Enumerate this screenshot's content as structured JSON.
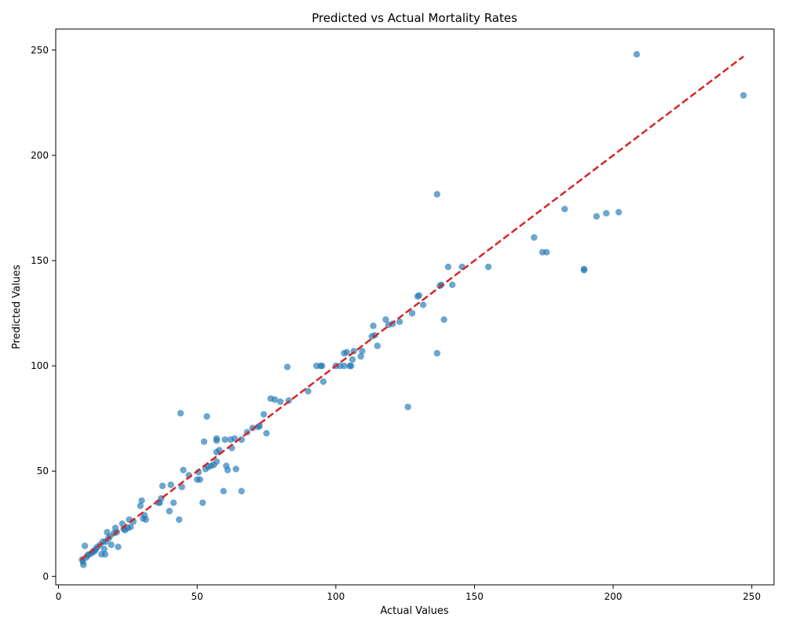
{
  "chart_data": {
    "type": "scatter",
    "title": "Predicted vs Actual Mortality Rates",
    "xlabel": "Actual Values",
    "ylabel": "Predicted Values",
    "xlim": [
      -1,
      258
    ],
    "ylim": [
      -4,
      260
    ],
    "xticks": [
      0,
      50,
      100,
      150,
      200,
      250
    ],
    "yticks": [
      0,
      50,
      100,
      150,
      200,
      250
    ],
    "grid": false,
    "point_color": "#1f77b4",
    "line_color": "#d62728",
    "reference_line": {
      "style": "dashed",
      "x": [
        8,
        247
      ],
      "y": [
        8,
        247
      ]
    },
    "points": [
      [
        8.5,
        8
      ],
      [
        8.8,
        7
      ],
      [
        9,
        5.5
      ],
      [
        9.5,
        14.5
      ],
      [
        10,
        9
      ],
      [
        10.5,
        10
      ],
      [
        11,
        10.5
      ],
      [
        12,
        11
      ],
      [
        12.5,
        12
      ],
      [
        13,
        12
      ],
      [
        13.5,
        13
      ],
      [
        14,
        14
      ],
      [
        15,
        15
      ],
      [
        15.5,
        10.5
      ],
      [
        16,
        16.5
      ],
      [
        16.5,
        13
      ],
      [
        16.8,
        10.5
      ],
      [
        17,
        16.5
      ],
      [
        17.5,
        21
      ],
      [
        18,
        18
      ],
      [
        18.5,
        19
      ],
      [
        19,
        15
      ],
      [
        20,
        20.5
      ],
      [
        20.5,
        23
      ],
      [
        21,
        21
      ],
      [
        21.5,
        14
      ],
      [
        23,
        25
      ],
      [
        23.5,
        22.5
      ],
      [
        24,
        22
      ],
      [
        25,
        23
      ],
      [
        25.5,
        27
      ],
      [
        26,
        23.5
      ],
      [
        27,
        26
      ],
      [
        29.5,
        33.5
      ],
      [
        30,
        36
      ],
      [
        30.5,
        27.5
      ],
      [
        31,
        29
      ],
      [
        31.5,
        27
      ],
      [
        36,
        35
      ],
      [
        36.5,
        35
      ],
      [
        37,
        37
      ],
      [
        37.5,
        43
      ],
      [
        40,
        31
      ],
      [
        40.5,
        43.5
      ],
      [
        41.5,
        35
      ],
      [
        43.5,
        27
      ],
      [
        44,
        77.5
      ],
      [
        44.5,
        42.5
      ],
      [
        45,
        50.5
      ],
      [
        47,
        48
      ],
      [
        50,
        46
      ],
      [
        50.5,
        49.5
      ],
      [
        51,
        46
      ],
      [
        52,
        35
      ],
      [
        52.5,
        64
      ],
      [
        53,
        51
      ],
      [
        53.5,
        76
      ],
      [
        54,
        52
      ],
      [
        55,
        52.5
      ],
      [
        56,
        53
      ],
      [
        57,
        54.5
      ],
      [
        57,
        59
      ],
      [
        57,
        64.5
      ],
      [
        57,
        65.5
      ],
      [
        58,
        60
      ],
      [
        59.5,
        40.5
      ],
      [
        60,
        65
      ],
      [
        60.5,
        52.5
      ],
      [
        61,
        50.5
      ],
      [
        62,
        65
      ],
      [
        62.5,
        61
      ],
      [
        63.5,
        65.5
      ],
      [
        64,
        51
      ],
      [
        66,
        40.5
      ],
      [
        66,
        65
      ],
      [
        68,
        68.5
      ],
      [
        70,
        70.5
      ],
      [
        72,
        71
      ],
      [
        72.5,
        71.5
      ],
      [
        74,
        77
      ],
      [
        75,
        68
      ],
      [
        76.5,
        84.5
      ],
      [
        78,
        84
      ],
      [
        80,
        83
      ],
      [
        82.5,
        99.5
      ],
      [
        83,
        83.5
      ],
      [
        90,
        88
      ],
      [
        93,
        100
      ],
      [
        94.5,
        100
      ],
      [
        95,
        100
      ],
      [
        95.5,
        92.5
      ],
      [
        100,
        100
      ],
      [
        101.5,
        100
      ],
      [
        103,
        106
      ],
      [
        103,
        100
      ],
      [
        104,
        106.5
      ],
      [
        105,
        100
      ],
      [
        105.5,
        100
      ],
      [
        106,
        103
      ],
      [
        106.5,
        107
      ],
      [
        109,
        104.5
      ],
      [
        109.5,
        107
      ],
      [
        113,
        114
      ],
      [
        113.5,
        119
      ],
      [
        114,
        114.5
      ],
      [
        115,
        109.5
      ],
      [
        118,
        122
      ],
      [
        119,
        119.5
      ],
      [
        120.5,
        120
      ],
      [
        123,
        121
      ],
      [
        126,
        80.5
      ],
      [
        127.5,
        125
      ],
      [
        129.5,
        133
      ],
      [
        130,
        133.5
      ],
      [
        131.5,
        129
      ],
      [
        136.5,
        181.5
      ],
      [
        136.5,
        106
      ],
      [
        137.5,
        138
      ],
      [
        138,
        138.5
      ],
      [
        139,
        122
      ],
      [
        140.5,
        147
      ],
      [
        142,
        138.5
      ],
      [
        145.5,
        147
      ],
      [
        155,
        147
      ],
      [
        171.5,
        161
      ],
      [
        174.5,
        154
      ],
      [
        176,
        154
      ],
      [
        182.5,
        174.5
      ],
      [
        189.5,
        145.5
      ],
      [
        189.5,
        146
      ],
      [
        194,
        171
      ],
      [
        197.5,
        172.5
      ],
      [
        202,
        173
      ],
      [
        208.5,
        248
      ],
      [
        247,
        228.5
      ]
    ]
  }
}
